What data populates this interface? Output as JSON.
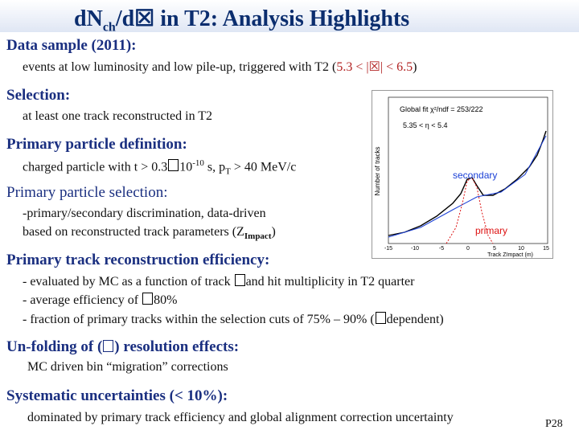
{
  "title": {
    "main": "d",
    "n": "N",
    "sub": "ch",
    "rest": "/d☒ in T2: Analysis Highlights"
  },
  "data_sample": {
    "heading": "Data sample (2011):",
    "line_a": "events at low luminosity and low pile-up, triggered with T2 (",
    "range": "5.3 < |☒| < 6.5",
    "line_b": ")"
  },
  "selection": {
    "heading": "Selection:",
    "line": "at least one track reconstructed in T2"
  },
  "primary_def": {
    "heading": "Primary particle definition:",
    "line_a": "charged particle with t > 0.3",
    "line_b": "10",
    "exp": "-10",
    "line_c": " s, p",
    "pt_sub": "T",
    "line_d": " > 40 MeV/c"
  },
  "primary_sel": {
    "heading": "Primary particle selection:",
    "line1": "-primary/secondary discrimination, data-driven",
    "line2_a": " based on reconstructed track parameters (Z",
    "line2_sub": "Impact",
    "line2_b": ")"
  },
  "efficiency": {
    "heading": "Primary track reconstruction efficiency:",
    "l1_a": "- evaluated by MC as a function of  track ",
    "l1_b": "and hit multiplicity in T2 quarter",
    "l2_a": "- average efficiency of ",
    "l2_b": "80%",
    "l3_a": "- fraction of primary tracks within the selection cuts of 75% – 90% (",
    "l3_b": "dependent)"
  },
  "unfolding": {
    "heading_a": "Un-folding of (",
    "heading_b": ") resolution effects:",
    "line": "MC driven bin “migration” corrections"
  },
  "systematic": {
    "heading": "Systematic uncertainties (< 10%):",
    "line": "dominated by primary track efficiency and global alignment correction uncertainty"
  },
  "page_number": "P28",
  "plot": {
    "ylabel": "Number of tracks",
    "xlabel": "Track ZImpact (m)",
    "legend1": "Global fit χ²/ndf = 253/222",
    "legend2": "5.35 < η < 5.4",
    "label_secondary": "secondary",
    "label_primary": "primary",
    "x_ticks": [
      "-15",
      "-10",
      "-5",
      "0",
      "5",
      "10",
      "15"
    ],
    "colors": {
      "data": "#000000",
      "fit": "#1a3fd6",
      "primary": "#d11",
      "secondary": "#1a3fd6"
    }
  }
}
